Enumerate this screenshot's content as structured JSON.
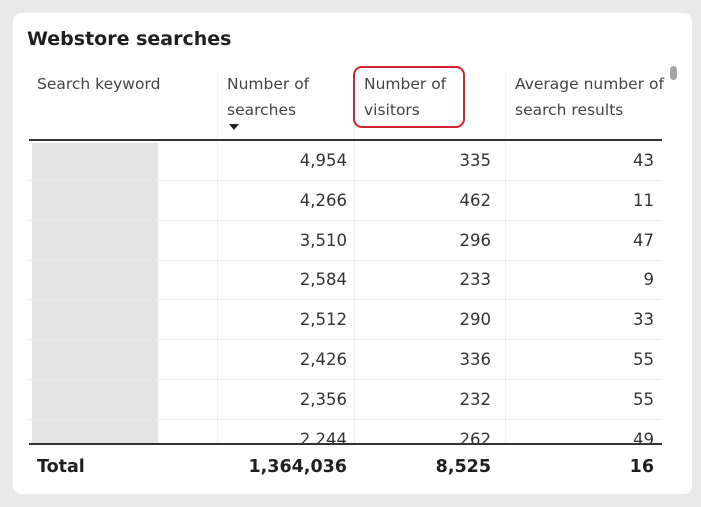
{
  "visual": {
    "title": "Webstore searches",
    "columns": [
      {
        "label": "Search keyword"
      },
      {
        "label": "Number of searches",
        "sorted": "descending"
      },
      {
        "label": "Number of visitors",
        "highlighted": true
      },
      {
        "label": "Average number of search results"
      }
    ],
    "rows": [
      {
        "keyword": "",
        "searches": "4,954",
        "visitors": "335",
        "avg_results": "43"
      },
      {
        "keyword": "",
        "searches": "4,266",
        "visitors": "462",
        "avg_results": "11"
      },
      {
        "keyword": "",
        "searches": "3,510",
        "visitors": "296",
        "avg_results": "47"
      },
      {
        "keyword": "",
        "searches": "2,584",
        "visitors": "233",
        "avg_results": "9"
      },
      {
        "keyword": "",
        "searches": "2,512",
        "visitors": "290",
        "avg_results": "33"
      },
      {
        "keyword": "",
        "searches": "2,426",
        "visitors": "336",
        "avg_results": "55"
      },
      {
        "keyword": "",
        "searches": "2,356",
        "visitors": "232",
        "avg_results": "55"
      },
      {
        "keyword": "",
        "searches": "2,244",
        "visitors": "262",
        "avg_results": "49"
      }
    ],
    "totals": {
      "label": "Total",
      "searches": "1,364,036",
      "visitors": "8,525",
      "avg_results": "16"
    },
    "highlight_color": "#d2242c",
    "sort_icon": "sort-descending-icon"
  }
}
